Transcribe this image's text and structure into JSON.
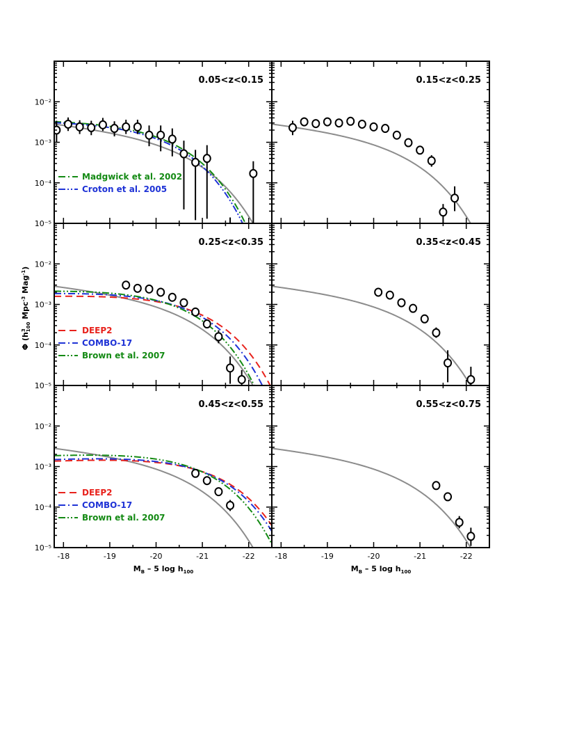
{
  "figure": {
    "ylabel_main": "Φ (h",
    "ylabel_sup1": "3",
    "ylabel_sub1": "100",
    "ylabel_mid": " Mpc",
    "ylabel_sup2": "-3",
    "ylabel_mid2": " Mag",
    "ylabel_sup3": "-1",
    "ylabel_end": ")",
    "xlabel_main": "M",
    "xlabel_sub1": "B",
    "xlabel_mid": " – 5 log h",
    "xlabel_sub2": "100"
  },
  "colors": {
    "points": "#000000",
    "reference": "#8c8c8c",
    "deep2": "#e8221c",
    "combo17": "#1f33d6",
    "brown": "#148a14",
    "madgwick": "#148a14",
    "croton": "#1f33d6"
  },
  "chart_data": [
    {
      "type": "scatter",
      "label": "0.05<z<0.15",
      "xlim": [
        -17.8,
        -22.5
      ],
      "yscale": "log",
      "ylim": [
        1e-05,
        0.1
      ],
      "ytick_labels": [
        "10⁻⁵",
        "10⁻⁴",
        "10⁻³",
        "10⁻²"
      ],
      "xtick_labels": [
        "-18",
        "-19",
        "-20",
        "-21",
        "-22"
      ],
      "points": [
        {
          "x": -17.85,
          "y": 0.002,
          "lo": 0.001,
          "hi": 0.0034
        },
        {
          "x": -18.1,
          "y": 0.0028,
          "lo": 0.0019,
          "hi": 0.0041
        },
        {
          "x": -18.35,
          "y": 0.0024,
          "lo": 0.0016,
          "hi": 0.0035
        },
        {
          "x": -18.6,
          "y": 0.0023,
          "lo": 0.0015,
          "hi": 0.0034
        },
        {
          "x": -18.85,
          "y": 0.0027,
          "lo": 0.0019,
          "hi": 0.004
        },
        {
          "x": -19.1,
          "y": 0.0022,
          "lo": 0.0014,
          "hi": 0.0033
        },
        {
          "x": -19.35,
          "y": 0.0024,
          "lo": 0.0016,
          "hi": 0.0036
        },
        {
          "x": -19.6,
          "y": 0.0024,
          "lo": 0.0016,
          "hi": 0.0036
        },
        {
          "x": -19.85,
          "y": 0.0015,
          "lo": 0.0008,
          "hi": 0.0026
        },
        {
          "x": -20.1,
          "y": 0.0015,
          "lo": 0.0006,
          "hi": 0.0026
        },
        {
          "x": -20.35,
          "y": 0.0012,
          "lo": 0.00045,
          "hi": 0.0022
        },
        {
          "x": -20.6,
          "y": 0.00052,
          "lo": 2.2e-05,
          "hi": 0.0011
        },
        {
          "x": -20.85,
          "y": 0.00032,
          "lo": 1.2e-05,
          "hi": 0.00065
        },
        {
          "x": -21.1,
          "y": 0.0004,
          "lo": 1.3e-05,
          "hi": 0.00085
        },
        {
          "x": -21.6,
          "y": null,
          "lo": 1e-05,
          "hi": 1.4e-05
        },
        {
          "x": -22.1,
          "y": 0.00017,
          "lo": 1e-05,
          "hi": 0.00034
        }
      ],
      "models": [
        {
          "key": "madgwick",
          "name": "Madgwick et al. 2002",
          "style": "dashdot",
          "phiStar": 0.004,
          "Mstar": -20.0,
          "alpha": -1.0
        },
        {
          "key": "croton",
          "name": "Croton et al. 2005",
          "style": "dashdotdot",
          "phiStar": 0.0038,
          "Mstar": -19.95,
          "alpha": -1.0
        }
      ],
      "legend": [
        {
          "key": "madgwick",
          "name": "Madgwick et al. 2002",
          "style": "dashdot"
        },
        {
          "key": "croton",
          "name": "Croton et al. 2005",
          "style": "dashdotdot"
        }
      ]
    },
    {
      "type": "scatter",
      "label": "0.15<z<0.25",
      "xlim": [
        -17.8,
        -22.5
      ],
      "yscale": "log",
      "ylim": [
        1e-05,
        0.1
      ],
      "xtick_labels": [
        "-18",
        "-19",
        "-20",
        "-21",
        "-22"
      ],
      "points": [
        {
          "x": -18.25,
          "y": 0.0023,
          "lo": 0.0015,
          "hi": 0.0034
        },
        {
          "x": -18.5,
          "y": 0.0032,
          "lo": 0.0025,
          "hi": 0.0041
        },
        {
          "x": -18.75,
          "y": 0.0029,
          "lo": 0.0024,
          "hi": 0.0035
        },
        {
          "x": -19.0,
          "y": 0.0032,
          "lo": 0.0027,
          "hi": 0.0038
        },
        {
          "x": -19.25,
          "y": 0.003,
          "lo": 0.0025,
          "hi": 0.0035
        },
        {
          "x": -19.5,
          "y": 0.0033,
          "lo": 0.0028,
          "hi": 0.0039
        },
        {
          "x": -19.75,
          "y": 0.0028,
          "lo": 0.0024,
          "hi": 0.0033
        },
        {
          "x": -20.0,
          "y": 0.0024,
          "lo": 0.002,
          "hi": 0.0028
        },
        {
          "x": -20.25,
          "y": 0.0022,
          "lo": 0.0019,
          "hi": 0.0026
        },
        {
          "x": -20.5,
          "y": 0.0015,
          "lo": 0.0012,
          "hi": 0.0018
        },
        {
          "x": -20.75,
          "y": 0.00098,
          "lo": 0.0008,
          "hi": 0.0012
        },
        {
          "x": -21.0,
          "y": 0.00064,
          "lo": 0.0005,
          "hi": 0.0008
        },
        {
          "x": -21.25,
          "y": 0.00035,
          "lo": 0.00025,
          "hi": 0.00048
        },
        {
          "x": -21.5,
          "y": 1.9e-05,
          "lo": 1e-05,
          "hi": 3e-05
        },
        {
          "x": -21.75,
          "y": 4.2e-05,
          "lo": 2e-05,
          "hi": 8.2e-05
        }
      ],
      "models": [],
      "legend": []
    },
    {
      "type": "scatter",
      "label": "0.25<z<0.35",
      "xlim": [
        -17.8,
        -22.5
      ],
      "yscale": "log",
      "ylim": [
        1e-05,
        0.1
      ],
      "ytick_labels": [
        "10⁻⁵",
        "10⁻⁴",
        "10⁻³",
        "10⁻²"
      ],
      "xtick_labels": [
        "-18",
        "-19",
        "-20",
        "-21",
        "-22"
      ],
      "points": [
        {
          "x": -19.35,
          "y": 0.003,
          "lo": 0.0026,
          "hi": 0.0035
        },
        {
          "x": -19.6,
          "y": 0.0025,
          "lo": 0.0022,
          "hi": 0.0029
        },
        {
          "x": -19.85,
          "y": 0.0024,
          "lo": 0.0021,
          "hi": 0.0027
        },
        {
          "x": -20.1,
          "y": 0.002,
          "lo": 0.0018,
          "hi": 0.0023
        },
        {
          "x": -20.35,
          "y": 0.0015,
          "lo": 0.0013,
          "hi": 0.0017
        },
        {
          "x": -20.6,
          "y": 0.0011,
          "lo": 0.00095,
          "hi": 0.0013
        },
        {
          "x": -20.85,
          "y": 0.00065,
          "lo": 0.00055,
          "hi": 0.00077
        },
        {
          "x": -21.1,
          "y": 0.00033,
          "lo": 0.00026,
          "hi": 0.00042
        },
        {
          "x": -21.35,
          "y": 0.00016,
          "lo": 0.00011,
          "hi": 0.00023
        },
        {
          "x": -21.6,
          "y": 2.7e-05,
          "lo": 1.1e-05,
          "hi": 5.2e-05
        },
        {
          "x": -21.85,
          "y": 1.4e-05,
          "lo": 1e-05,
          "hi": 2.4e-05
        }
      ],
      "models": [
        {
          "key": "deep2",
          "name": "DEEP2",
          "style": "dashed",
          "phiStar": 0.0024,
          "Mstar": -20.6,
          "alpha": -0.9
        },
        {
          "key": "combo17",
          "name": "COMBO-17",
          "style": "dashdot",
          "phiStar": 0.0028,
          "Mstar": -20.4,
          "alpha": -0.9
        },
        {
          "key": "brown",
          "name": "Brown et al. 2007",
          "style": "dashdotdot",
          "phiStar": 0.0032,
          "Mstar": -20.2,
          "alpha": -0.9
        }
      ],
      "legend": [
        {
          "key": "deep2",
          "name": "DEEP2",
          "style": "dashed"
        },
        {
          "key": "combo17",
          "name": "COMBO-17",
          "style": "dashdot"
        },
        {
          "key": "brown",
          "name": "Brown et al. 2007",
          "style": "dashdotdot"
        }
      ]
    },
    {
      "type": "scatter",
      "label": "0.35<z<0.45",
      "xlim": [
        -17.8,
        -22.5
      ],
      "yscale": "log",
      "ylim": [
        1e-05,
        0.1
      ],
      "xtick_labels": [
        "-18",
        "-19",
        "-20",
        "-21",
        "-22"
      ],
      "points": [
        {
          "x": -20.1,
          "y": 0.002,
          "lo": 0.0018,
          "hi": 0.0023
        },
        {
          "x": -20.35,
          "y": 0.0017,
          "lo": 0.0015,
          "hi": 0.002
        },
        {
          "x": -20.6,
          "y": 0.0011,
          "lo": 0.00097,
          "hi": 0.0013
        },
        {
          "x": -20.85,
          "y": 0.0008,
          "lo": 0.0007,
          "hi": 0.00092
        },
        {
          "x": -21.1,
          "y": 0.00044,
          "lo": 0.00037,
          "hi": 0.00053
        },
        {
          "x": -21.35,
          "y": 0.0002,
          "lo": 0.00015,
          "hi": 0.00027
        },
        {
          "x": -21.6,
          "y": 3.6e-05,
          "lo": 1.2e-05,
          "hi": 7.4e-05
        },
        {
          "x": -22.1,
          "y": 1.4e-05,
          "lo": 1e-05,
          "hi": 2.9e-05
        }
      ],
      "models": [],
      "legend": []
    },
    {
      "type": "scatter",
      "label": "0.45<z<0.55",
      "xlim": [
        -17.8,
        -22.5
      ],
      "yscale": "log",
      "ylim": [
        1e-05,
        0.1
      ],
      "ytick_labels": [
        "10⁻⁵",
        "10⁻⁴",
        "10⁻³",
        "10⁻²"
      ],
      "xtick_labels": [
        "-18",
        "-19",
        "-20",
        "-21",
        "-22"
      ],
      "points": [
        {
          "x": -20.85,
          "y": 0.00068,
          "lo": 0.00058,
          "hi": 0.0008
        },
        {
          "x": -21.1,
          "y": 0.00045,
          "lo": 0.00038,
          "hi": 0.00054
        },
        {
          "x": -21.35,
          "y": 0.00024,
          "lo": 0.00019,
          "hi": 0.0003
        },
        {
          "x": -21.6,
          "y": 0.00011,
          "lo": 8e-05,
          "hi": 0.00015
        }
      ],
      "models": [
        {
          "key": "deep2",
          "name": "DEEP2",
          "style": "dashed",
          "phiStar": 0.0024,
          "Mstar": -20.9,
          "alpha": -0.85
        },
        {
          "key": "combo17",
          "name": "COMBO-17",
          "style": "dashdot",
          "phiStar": 0.0026,
          "Mstar": -20.8,
          "alpha": -0.85
        },
        {
          "key": "brown",
          "name": "Brown et al. 2007",
          "style": "dashdotdot",
          "phiStar": 0.0032,
          "Mstar": -20.6,
          "alpha": -0.85
        }
      ],
      "legend": [
        {
          "key": "deep2",
          "name": "DEEP2",
          "style": "dashed"
        },
        {
          "key": "combo17",
          "name": "COMBO-17",
          "style": "dashdot"
        },
        {
          "key": "brown",
          "name": "Brown et al. 2007",
          "style": "dashdotdot"
        }
      ]
    },
    {
      "type": "scatter",
      "label": "0.55<z<0.75",
      "xlim": [
        -17.8,
        -22.5
      ],
      "yscale": "log",
      "ylim": [
        1e-05,
        0.1
      ],
      "xtick_labels": [
        "-18",
        "-19",
        "-20",
        "-21",
        "-22"
      ],
      "points": [
        {
          "x": -21.35,
          "y": 0.00034,
          "lo": 0.0003,
          "hi": 0.00039
        },
        {
          "x": -21.6,
          "y": 0.00018,
          "lo": 0.00016,
          "hi": 0.00021
        },
        {
          "x": -21.85,
          "y": 4.2e-05,
          "lo": 3e-05,
          "hi": 6e-05
        },
        {
          "x": -22.1,
          "y": 1.9e-05,
          "lo": 1.1e-05,
          "hi": 3.1e-05
        }
      ],
      "models": [],
      "legend": []
    }
  ],
  "reference_curve": {
    "phiStar": 0.0016,
    "Mstar": -20.45,
    "alpha": -1.3
  }
}
